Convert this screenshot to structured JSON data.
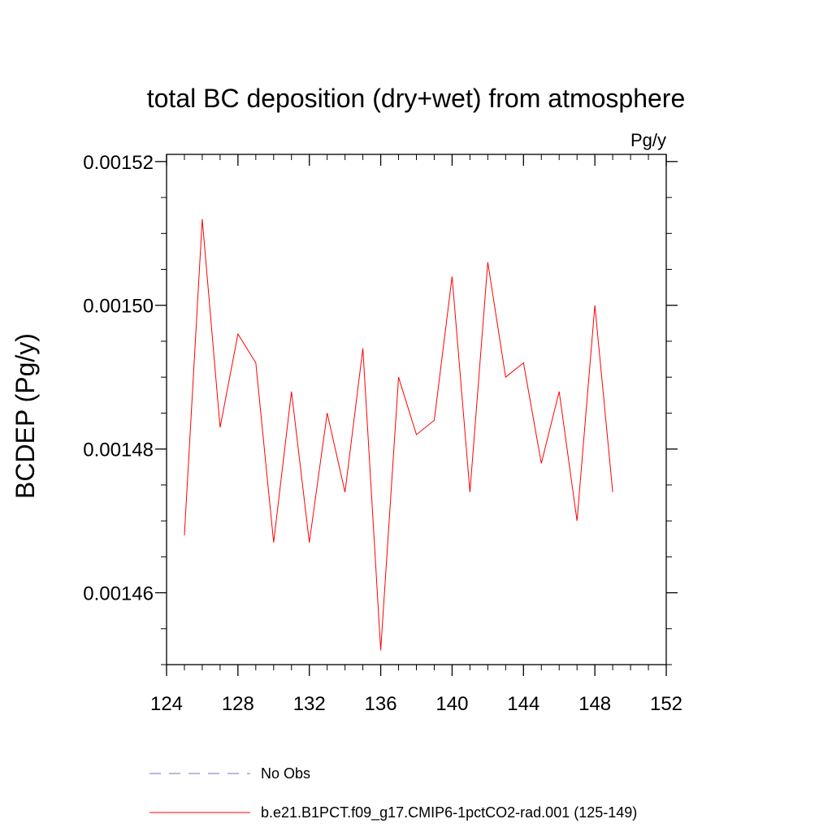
{
  "chart_data": {
    "type": "line",
    "title": "total BC deposition (dry+wet) from atmosphere",
    "units": "Pg/y",
    "ylabel": "BCDEP  (Pg/y)",
    "xlabel": "",
    "xlim": [
      124,
      152
    ],
    "ylim": [
      0.00145,
      0.001521
    ],
    "x_ticks": [
      124,
      128,
      132,
      136,
      140,
      144,
      148,
      152
    ],
    "x_tick_labels": [
      "124",
      "128",
      "132",
      "136",
      "140",
      "144",
      "148",
      "152"
    ],
    "y_ticks": [
      0.00146,
      0.00148,
      0.0015,
      0.00152
    ],
    "y_tick_labels": [
      "0.00146",
      "0.00148",
      "0.00150",
      "0.00152"
    ],
    "grid": false,
    "legend_position": "bottom",
    "series": [
      {
        "name": "No Obs",
        "color": "#7f6fbf",
        "style": "dashed",
        "x": [],
        "y": []
      },
      {
        "name": "b.e21.B1PCT.f09_g17.CMIP6-1pctCO2-rad.001 (125-149)",
        "color": "#ff0000",
        "style": "solid",
        "x": [
          125,
          126,
          127,
          128,
          129,
          130,
          131,
          132,
          133,
          134,
          135,
          136,
          137,
          138,
          139,
          140,
          141,
          142,
          143,
          144,
          145,
          146,
          147,
          148,
          149
        ],
        "y": [
          0.001468,
          0.001512,
          0.001483,
          0.001496,
          0.001492,
          0.001467,
          0.001488,
          0.001467,
          0.001485,
          0.001474,
          0.001494,
          0.001452,
          0.00149,
          0.001482,
          0.001484,
          0.001504,
          0.001474,
          0.001506,
          0.00149,
          0.001492,
          0.001478,
          0.001488,
          0.00147,
          0.0015,
          0.001474
        ]
      }
    ]
  }
}
